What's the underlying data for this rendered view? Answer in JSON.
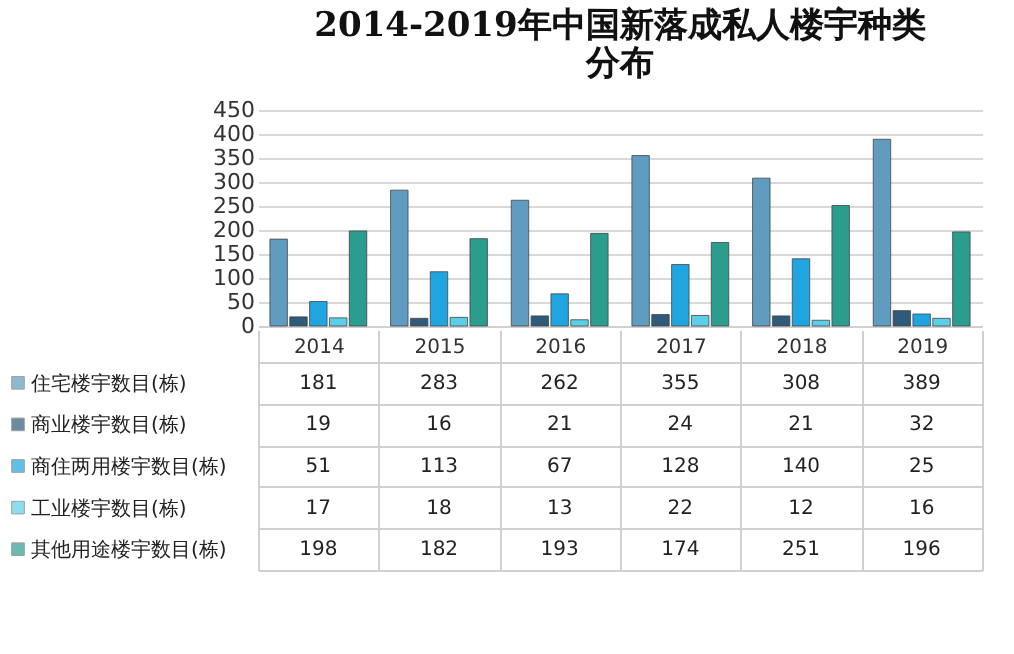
{
  "chart_data": {
    "type": "bar",
    "title": "2014-2019年中国新落成私人楼宇种类分布",
    "categories": [
      "2014",
      "2015",
      "2016",
      "2017",
      "2018",
      "2019"
    ],
    "series": [
      {
        "name": "住宅楼宇数目(栋)",
        "color": "#5f9cc0",
        "values": [
          181,
          283,
          262,
          355,
          308,
          389
        ]
      },
      {
        "name": "商业楼宇数目(栋)",
        "color": "#2f5a7a",
        "values": [
          19,
          16,
          21,
          24,
          21,
          32
        ]
      },
      {
        "name": "商住两用楼宇数目(栋)",
        "color": "#1fa6e0",
        "values": [
          51,
          113,
          67,
          128,
          140,
          25
        ]
      },
      {
        "name": "工业楼宇数目(栋)",
        "color": "#5ccfe8",
        "values": [
          17,
          18,
          13,
          22,
          12,
          16
        ]
      },
      {
        "name": "其他用途楼宇数目(栋)",
        "color": "#2a9d8f",
        "values": [
          198,
          182,
          193,
          174,
          251,
          196
        ]
      }
    ],
    "ylim": [
      0,
      450
    ],
    "yticks": [
      0,
      50,
      100,
      150,
      200,
      250,
      300,
      350,
      400,
      450
    ],
    "grid": "y",
    "data_labels": true,
    "legend": "bottom left"
  }
}
